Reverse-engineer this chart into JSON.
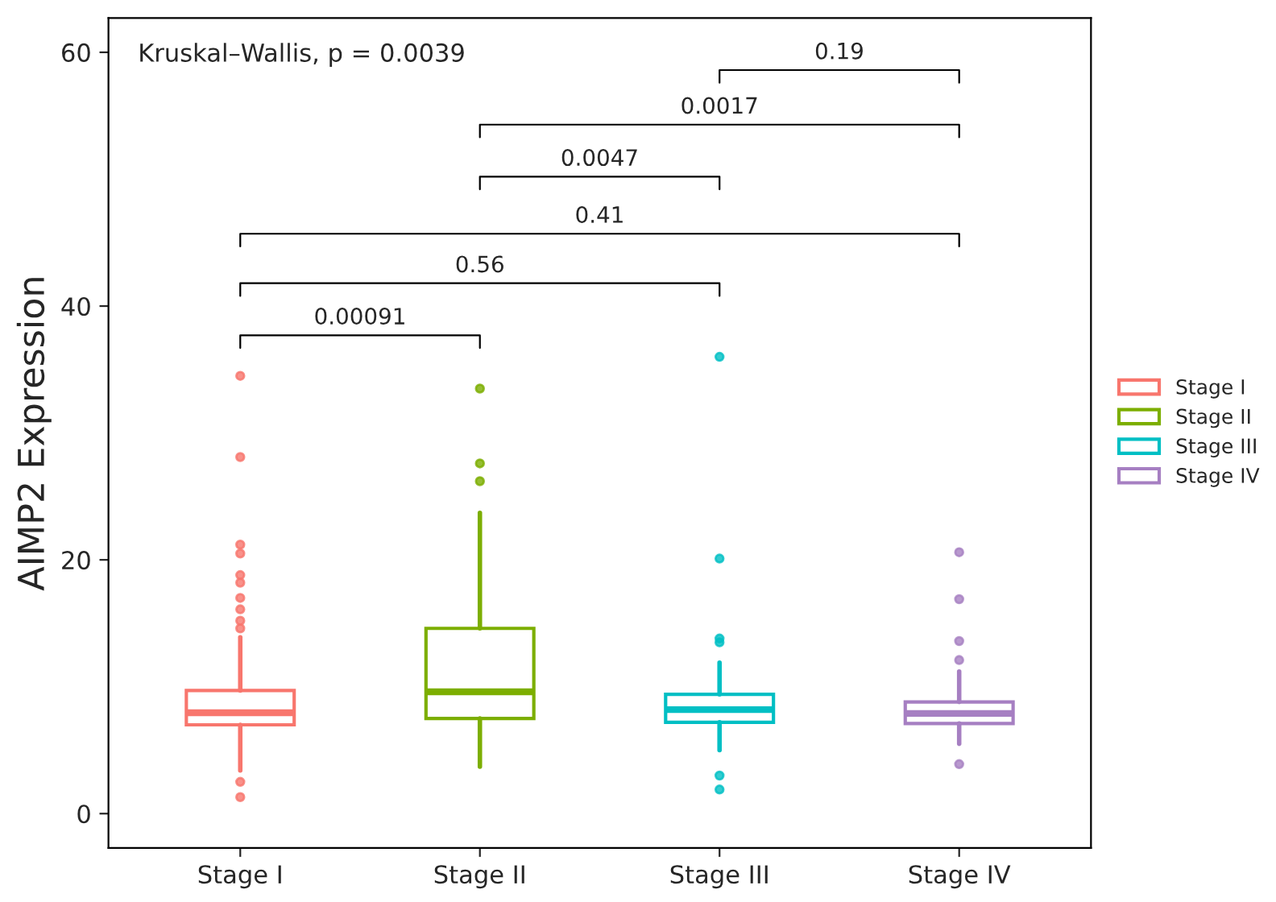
{
  "chart_data": {
    "type": "box",
    "ylabel": "AIMP2 Expression",
    "categories": [
      "Stage I",
      "Stage II",
      "Stage III",
      "Stage IV"
    ],
    "series": [
      {
        "name": "Stage I",
        "color": "#f8766d",
        "boxes": [
          {
            "low": 3.4,
            "q1": 7.0,
            "median": 7.95,
            "q3": 9.7,
            "high": 13.9,
            "outliers": [
              34.5,
              28.1,
              21.2,
              20.5,
              18.8,
              18.2,
              17.0,
              16.1,
              15.2,
              14.6,
              2.5,
              1.3
            ]
          },
          null,
          null,
          null
        ]
      },
      {
        "name": "Stage II",
        "color": "#7cae00",
        "boxes": [
          null,
          {
            "low": 3.7,
            "q1": 7.5,
            "median": 9.6,
            "q3": 14.6,
            "high": 23.7,
            "outliers": [
              33.5,
              27.6,
              26.2
            ]
          },
          null,
          null
        ]
      },
      {
        "name": "Stage III",
        "color": "#00bfc4",
        "boxes": [
          null,
          null,
          {
            "low": 5.0,
            "q1": 7.2,
            "median": 8.2,
            "q3": 9.4,
            "high": 11.9,
            "outliers": [
              36.0,
              20.1,
              13.8,
              13.5,
              3.0,
              1.9
            ]
          },
          null
        ]
      },
      {
        "name": "Stage IV",
        "color": "#a67fc2",
        "boxes": [
          null,
          null,
          null,
          {
            "low": 5.5,
            "q1": 7.1,
            "median": 7.9,
            "q3": 8.8,
            "high": 11.2,
            "outliers": [
              20.6,
              16.9,
              13.6,
              12.1,
              3.9
            ]
          }
        ]
      }
    ],
    "annotations": [
      "Kruskal–Wallis, p = 0.0039",
      "0.00091",
      "0.56",
      "0.41",
      "0.0047",
      "0.0017",
      "0.19"
    ],
    "ylim": [
      -2.7,
      62.7
    ],
    "yticks": [
      0,
      20,
      40,
      60
    ],
    "grid": false,
    "legend": "right"
  }
}
